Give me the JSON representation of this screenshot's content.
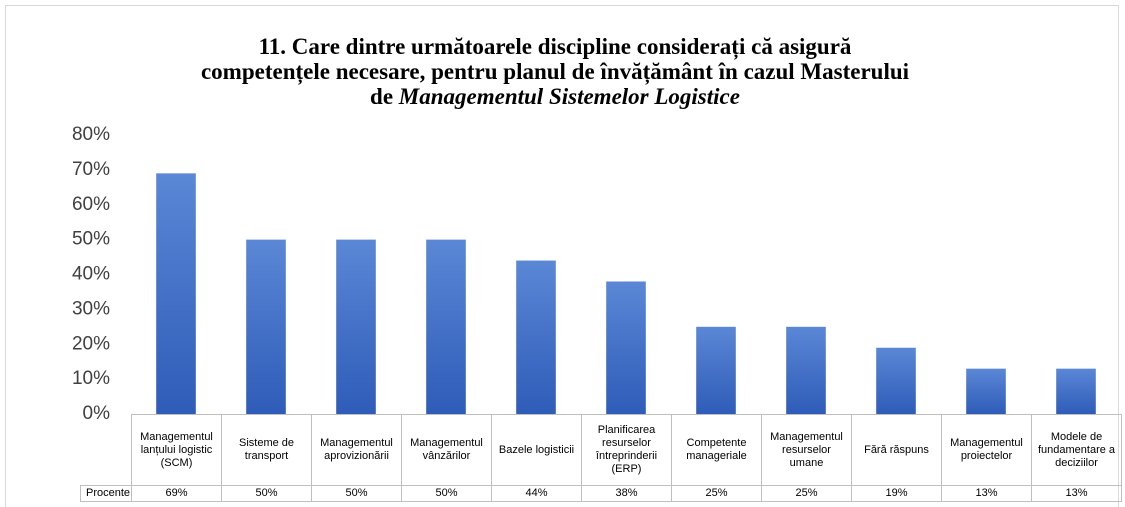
{
  "chart_data": {
    "type": "bar",
    "title": {
      "lines": [
        "11. Care dintre următoarele discipline considerați că asigură",
        "competențele necesare, pentru planul de învățământ în cazul Masterului"
      ],
      "last_line": {
        "text": "de",
        "italic": "Managementul Sistemelor Logistice"
      }
    },
    "categories": [
      "Managementul lanțului logistic (SCM)",
      "Sisteme de transport",
      "Managementul aprovizionării",
      "Managementul vânzărilor",
      "Bazele logisticii",
      "Planificarea resurselor întreprinderii (ERP)",
      "Competente manageriale",
      "Managementul resurselor umane",
      "Fără răspuns",
      "Managementul proiectelor",
      "Modele de fundamentare a deciziilor"
    ],
    "series": [
      {
        "name": "Procente",
        "color": "#4472c4",
        "values": [
          69,
          50,
          50,
          50,
          44,
          38,
          25,
          25,
          19,
          13,
          13
        ],
        "value_labels": [
          "69%",
          "50%",
          "50%",
          "50%",
          "44%",
          "38%",
          "25%",
          "25%",
          "19%",
          "13%",
          "13%"
        ]
      }
    ],
    "ylim": [
      0,
      80
    ],
    "yticks": [
      {
        "value": 0,
        "label": "0%"
      },
      {
        "value": 10,
        "label": "10%"
      },
      {
        "value": 20,
        "label": "20%"
      },
      {
        "value": 30,
        "label": "30%"
      },
      {
        "value": 40,
        "label": "40%"
      },
      {
        "value": 50,
        "label": "50%"
      },
      {
        "value": 60,
        "label": "60%"
      },
      {
        "value": 70,
        "label": "70%"
      },
      {
        "value": 80,
        "label": "80%"
      }
    ],
    "grid": false
  }
}
